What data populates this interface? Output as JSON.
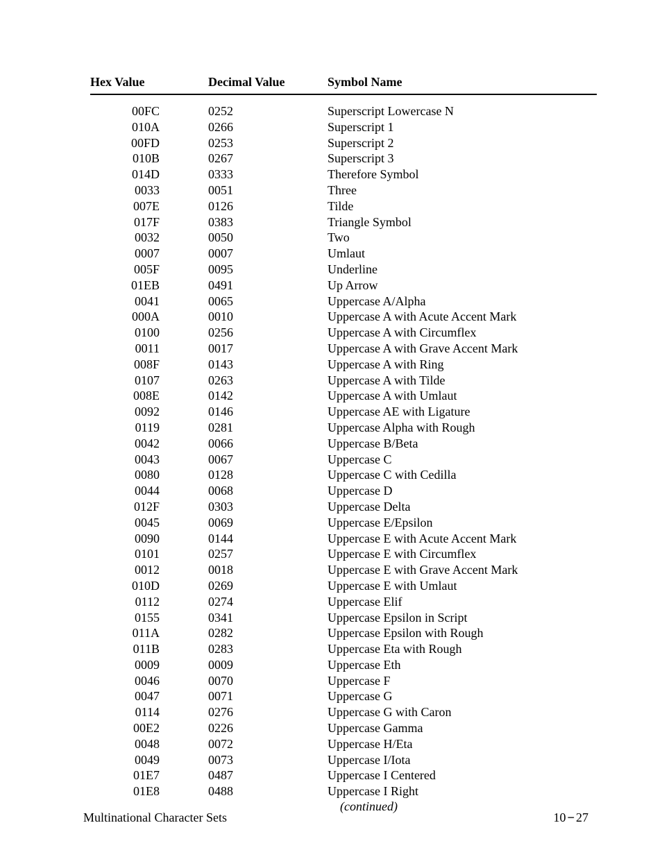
{
  "headers": {
    "hex": "Hex Value",
    "dec": "Decimal Value",
    "name": "Symbol Name"
  },
  "rows": [
    {
      "hex": "00FC",
      "dec": "0252",
      "name": "Superscript Lowercase N"
    },
    {
      "hex": "010A",
      "dec": "0266",
      "name": "Superscript 1"
    },
    {
      "hex": "00FD",
      "dec": "0253",
      "name": "Superscript 2"
    },
    {
      "hex": "010B",
      "dec": "0267",
      "name": "Superscript 3"
    },
    {
      "hex": "014D",
      "dec": "0333",
      "name": "Therefore Symbol"
    },
    {
      "hex": "0033",
      "dec": "0051",
      "name": "Three"
    },
    {
      "hex": "007E",
      "dec": "0126",
      "name": "Tilde"
    },
    {
      "hex": "017F",
      "dec": "0383",
      "name": "Triangle Symbol"
    },
    {
      "hex": "0032",
      "dec": "0050",
      "name": "Two"
    },
    {
      "hex": "0007",
      "dec": "0007",
      "name": "Umlaut"
    },
    {
      "hex": "005F",
      "dec": "0095",
      "name": "Underline"
    },
    {
      "hex": "01EB",
      "dec": "0491",
      "name": "Up Arrow"
    },
    {
      "hex": "0041",
      "dec": "0065",
      "name": "Uppercase A/Alpha"
    },
    {
      "hex": "000A",
      "dec": "0010",
      "name": "Uppercase A with Acute Accent Mark"
    },
    {
      "hex": "0100",
      "dec": "0256",
      "name": "Uppercase A with Circumflex"
    },
    {
      "hex": "0011",
      "dec": "0017",
      "name": "Uppercase A with Grave Accent Mark"
    },
    {
      "hex": "008F",
      "dec": "0143",
      "name": "Uppercase A with Ring"
    },
    {
      "hex": "0107",
      "dec": "0263",
      "name": "Uppercase A with Tilde"
    },
    {
      "hex": "008E",
      "dec": "0142",
      "name": "Uppercase A with Umlaut"
    },
    {
      "hex": "0092",
      "dec": "0146",
      "name": "Uppercase AE with Ligature"
    },
    {
      "hex": "0119",
      "dec": "0281",
      "name": "Uppercase Alpha with Rough"
    },
    {
      "hex": "0042",
      "dec": "0066",
      "name": "Uppercase B/Beta"
    },
    {
      "hex": "0043",
      "dec": "0067",
      "name": "Uppercase C"
    },
    {
      "hex": "0080",
      "dec": "0128",
      "name": "Uppercase C with Cedilla"
    },
    {
      "hex": "0044",
      "dec": "0068",
      "name": "Uppercase D"
    },
    {
      "hex": "012F",
      "dec": "0303",
      "name": "Uppercase Delta"
    },
    {
      "hex": "0045",
      "dec": "0069",
      "name": "Uppercase E/Epsilon"
    },
    {
      "hex": "0090",
      "dec": "0144",
      "name": "Uppercase E with Acute Accent Mark"
    },
    {
      "hex": "0101",
      "dec": "0257",
      "name": "Uppercase E with Circumflex"
    },
    {
      "hex": "0012",
      "dec": "0018",
      "name": "Uppercase E with Grave Accent Mark"
    },
    {
      "hex": "010D",
      "dec": "0269",
      "name": "Uppercase E with Umlaut"
    },
    {
      "hex": "0112",
      "dec": "0274",
      "name": "Uppercase Elif"
    },
    {
      "hex": "0155",
      "dec": "0341",
      "name": "Uppercase Epsilon in Script"
    },
    {
      "hex": "011A",
      "dec": "0282",
      "name": "Uppercase Epsilon with Rough"
    },
    {
      "hex": "011B",
      "dec": "0283",
      "name": "Uppercase Eta with Rough"
    },
    {
      "hex": "0009",
      "dec": "0009",
      "name": "Uppercase Eth"
    },
    {
      "hex": "0046",
      "dec": "0070",
      "name": "Uppercase F"
    },
    {
      "hex": "0047",
      "dec": "0071",
      "name": "Uppercase G"
    },
    {
      "hex": "0114",
      "dec": "0276",
      "name": "Uppercase G with Caron"
    },
    {
      "hex": "00E2",
      "dec": "0226",
      "name": "Uppercase Gamma"
    },
    {
      "hex": "0048",
      "dec": "0072",
      "name": "Uppercase H/Eta"
    },
    {
      "hex": "0049",
      "dec": "0073",
      "name": "Uppercase I/Iota"
    },
    {
      "hex": "01E7",
      "dec": "0487",
      "name": "Uppercase I Centered"
    },
    {
      "hex": "01E8",
      "dec": "0488",
      "name": "Uppercase I Right"
    }
  ],
  "continued": "(continued)",
  "footer": {
    "left": "Multinational Character Sets",
    "chapter": "10",
    "dash": "−",
    "page": "27"
  }
}
